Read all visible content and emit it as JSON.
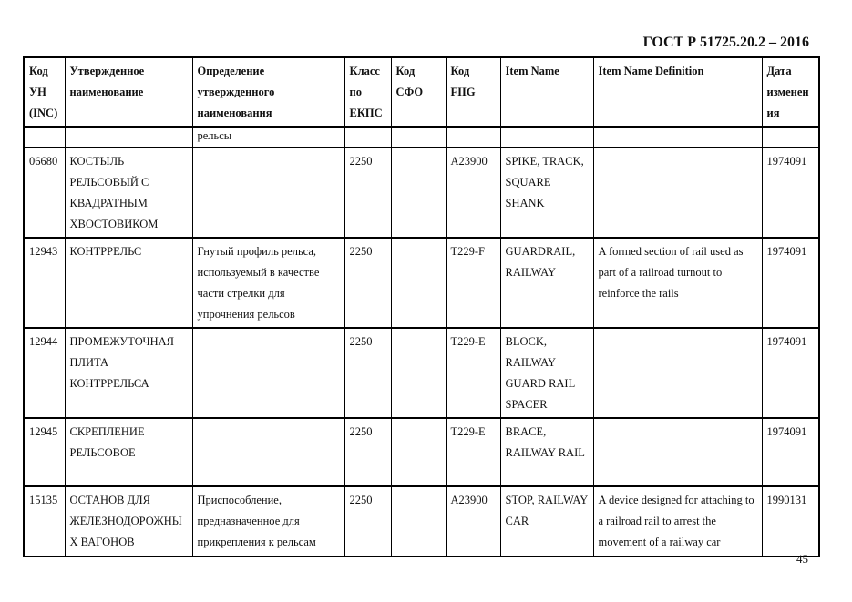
{
  "header": {
    "doc_title": "ГОСТ Р 51725.20.2 – 2016"
  },
  "table": {
    "columns": [
      "Код УН (INC)",
      "Утвержденное наименование",
      "Определение утвержденного наименования",
      "Класс по ЕКПС",
      "Код СФО",
      "Код FIIG",
      "Item Name",
      "Item Name Definition",
      "Дата изменения"
    ],
    "rows": [
      [
        "",
        "",
        "рельсы",
        "",
        "",
        "",
        "",
        "",
        ""
      ],
      [
        "06680",
        "КОСТЫЛЬ РЕЛЬСОВЫЙ С КВАДРАТНЫМ ХВОСТОВИКОМ",
        "",
        "2250",
        "",
        "A23900",
        "SPIKE, TRACK, SQUARE SHANK",
        "",
        "1974091"
      ],
      [
        "12943",
        "КОНТРРЕЛЬС",
        "Гнутый профиль рельса, используемый в качестве части стрелки для упрочнения рельсов",
        "2250",
        "",
        "T229-F",
        "GUARDRAIL, RAILWAY",
        "A formed section of rail used as part of a railroad turnout to reinforce the rails",
        "1974091"
      ],
      [
        "12944",
        "ПРОМЕЖУТОЧНАЯ ПЛИТА КОНТРРЕЛЬСА",
        "",
        "2250",
        "",
        "T229-E",
        "BLOCK, RAILWAY GUARD RAIL SPACER",
        "",
        "1974091"
      ],
      [
        "12945",
        "СКРЕПЛЕНИЕ РЕЛЬСОВОЕ",
        "",
        "2250",
        "",
        "T229-E",
        "BRACE, RAILWAY RAIL",
        "",
        "1974091"
      ],
      [
        "15135",
        "ОСТАНОВ ДЛЯ ЖЕЛЕЗНОДОРОЖНЫХ ВАГОНОВ",
        "Приспособление, предназначенное для прикрепления к рельсам",
        "2250",
        "",
        "A23900",
        "STOP, RAILWAY CAR",
        "A device designed for attaching to a railroad rail to arrest the movement of a railway car",
        "1990131"
      ]
    ]
  },
  "footer": {
    "page_number": "45"
  }
}
